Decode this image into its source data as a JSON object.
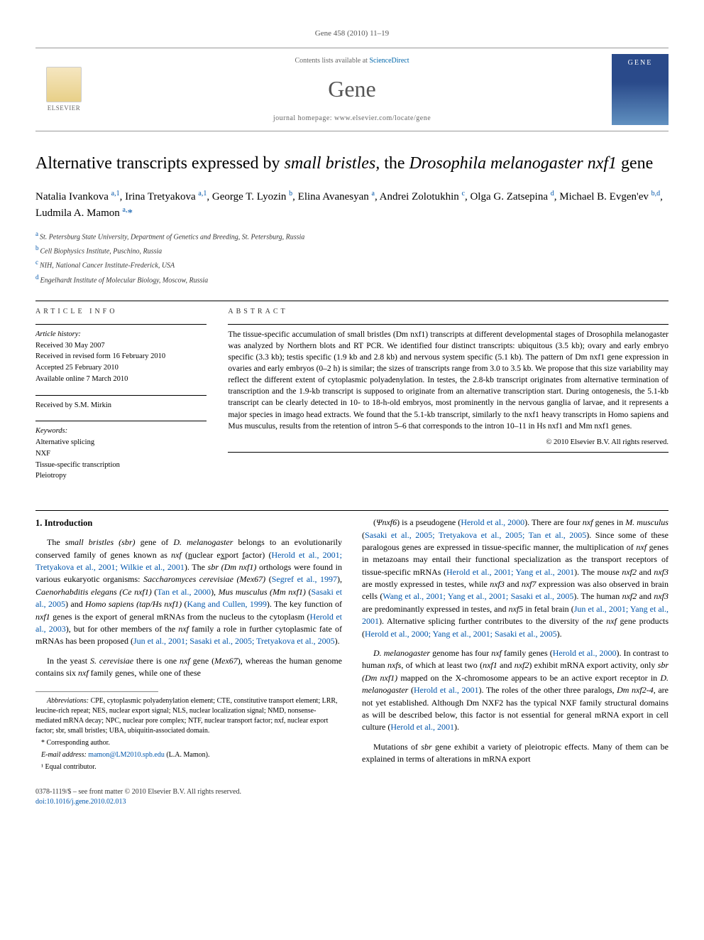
{
  "journal_ref": "Gene 458 (2010) 11–19",
  "masthead": {
    "contents_line_prefix": "Contents lists available at ",
    "contents_link": "ScienceDirect",
    "journal_name": "Gene",
    "homepage_line": "journal homepage: www.elsevier.com/locate/gene",
    "publisher_label": "ELSEVIER"
  },
  "title_parts": {
    "p1": "Alternative transcripts expressed by ",
    "p2": "small bristles,",
    "p3": " the ",
    "p4": "Drosophila melanogaster nxf1",
    "p5": " gene"
  },
  "authors": [
    {
      "name": "Natalia Ivankova",
      "sup": "a,1"
    },
    {
      "name": "Irina Tretyakova",
      "sup": "a,1"
    },
    {
      "name": "George T. Lyozin",
      "sup": "b"
    },
    {
      "name": "Elina Avanesyan",
      "sup": "a"
    },
    {
      "name": "Andrei Zolotukhin",
      "sup": "c"
    },
    {
      "name": "Olga G. Zatsepina",
      "sup": "d"
    },
    {
      "name": "Michael B. Evgen'ev",
      "sup": "b,d"
    },
    {
      "name": "Ludmila A. Mamon",
      "sup": "a,",
      "star": "*"
    }
  ],
  "affiliations": [
    {
      "label": "a",
      "text": "St. Petersburg State University, Department of Genetics and Breeding, St. Petersburg, Russia"
    },
    {
      "label": "b",
      "text": "Cell Biophysics Institute, Puschino, Russia"
    },
    {
      "label": "c",
      "text": "NIH, National Cancer Institute-Frederick, USA"
    },
    {
      "label": "d",
      "text": "Engelhardt Institute of Molecular Biology, Moscow, Russia"
    }
  ],
  "article_info": {
    "heading": "ARTICLE INFO",
    "history_label": "Article history:",
    "history": [
      "Received 30 May 2007",
      "Received in revised form 16 February 2010",
      "Accepted 25 February 2010",
      "Available online 7 March 2010"
    ],
    "received_by": "Received by S.M. Mirkin",
    "keywords_label": "Keywords:",
    "keywords": [
      "Alternative splicing",
      "NXF",
      "Tissue-specific transcription",
      "Pleiotropy"
    ]
  },
  "abstract": {
    "heading": "ABSTRACT",
    "text": "The tissue-specific accumulation of small bristles (Dm nxf1) transcripts at different developmental stages of Drosophila melanogaster was analyzed by Northern blots and RT PCR. We identified four distinct transcripts: ubiquitous (3.5 kb); ovary and early embryo specific (3.3 kb); testis specific (1.9 kb and 2.8 kb) and nervous system specific (5.1 kb). The pattern of Dm nxf1 gene expression in ovaries and early embryos (0–2 h) is similar; the sizes of transcripts range from 3.0 to 3.5 kb. We propose that this size variability may reflect the different extent of cytoplasmic polyadenylation. In testes, the 2.8-kb transcript originates from alternative termination of transcription and the 1.9-kb transcript is supposed to originate from an alternative transcription start. During ontogenesis, the 5.1-kb transcript can be clearly detected in 10- to 18-h-old embryos, most prominently in the nervous ganglia of larvae, and it represents a major species in imago head extracts. We found that the 5.1-kb transcript, similarly to the nxf1 heavy transcripts in Homo sapiens and Mus musculus, results from the retention of intron 5–6 that corresponds to the intron 10–11 in Hs nxf1 and Mm nxf1 genes.",
    "copyright": "© 2010 Elsevier B.V. All rights reserved."
  },
  "intro_heading": "1. Introduction",
  "col_left": {
    "para1_html": "The <i>small bristles (sbr)</i> gene of <i>D. melanogaster</i> belongs to an evolutionarily conserved family of genes known as <i>nxf</i> (<u>n</u>uclear e<u>x</u>port <u>f</u>actor) (<span class='cite'>Herold et al., 2001; Tretyakova et al., 2001; Wilkie et al., 2001</span>). The <i>sbr (Dm nxf1)</i> orthologs were found in various eukaryotic organisms: <i>Saccharomyces cerevisiae (Mex67)</i> (<span class='cite'>Segref et al., 1997</span>), <i>Caenorhabditis elegans (Ce nxf1)</i> (<span class='cite'>Tan et al., 2000</span>), <i>Mus musculus (Mm nxf1)</i> (<span class='cite'>Sasaki et al., 2005</span>) and <i>Homo sapiens (tap/Hs nxf1)</i> (<span class='cite'>Kang and Cullen, 1999</span>). The key function of <i>nxf1</i> genes is the export of general mRNAs from the nucleus to the cytoplasm (<span class='cite'>Herold et al., 2003</span>), but for other members of the <i>nxf</i> family a role in further cytoplasmic fate of mRNAs has been proposed (<span class='cite'>Jun et al., 2001; Sasaki et al., 2005; Tretyakova et al., 2005</span>).",
    "para2_html": "In the yeast <i>S. cerevisiae</i> there is one <i>nxf</i> gene (<i>Mex67</i>), whereas the human genome contains six <i>nxf</i> family genes, while one of these"
  },
  "col_right": {
    "para1_html": "(<i>Ψnxf6</i>) is a pseudogene (<span class='cite'>Herold et al., 2000</span>). There are four <i>nxf</i> genes in <i>M. musculus</i> (<span class='cite'>Sasaki et al., 2005; Tretyakova et al., 2005; Tan et al., 2005</span>). Since some of these paralogous genes are expressed in tissue-specific manner, the multiplication of <i>nxf</i> genes in metazoans may entail their functional specialization as the transport receptors of tissue-specific mRNAs (<span class='cite'>Herold et al., 2001; Yang et al., 2001</span>). The mouse <i>nxf2</i> and <i>nxf3</i> are mostly expressed in testes, while <i>nxf3</i> and <i>nxf7</i> expression was also observed in brain cells (<span class='cite'>Wang et al., 2001; Yang et al., 2001; Sasaki et al., 2005</span>). The human <i>nxf2</i> and <i>nxf3</i> are predominantly expressed in testes, and <i>nxf5</i> in fetal brain (<span class='cite'>Jun et al., 2001; Yang et al., 2001</span>). Alternative splicing further contributes to the diversity of the <i>nxf</i> gene products (<span class='cite'>Herold et al., 2000; Yang et al., 2001; Sasaki et al., 2005</span>).",
    "para2_html": "<i>D. melanogaster</i> genome has four <i>nxf</i> family genes (<span class='cite'>Herold et al., 2000</span>). In contrast to human <i>nxfs</i>, of which at least two (<i>nxf1</i> and <i>nxf2</i>) exhibit mRNA export activity, only <i>sbr (Dm nxf1)</i> mapped on the X-chromosome appears to be an active export receptor in <i>D. melanogaster</i> (<span class='cite'>Herold et al., 2001</span>). The roles of the other three paralogs, <i>Dm nxf2-4</i>, are not yet established. Although Dm NXF2 has the typical NXF family structural domains as will be described below, this factor is not essential for general mRNA export in cell culture (<span class='cite'>Herold et al., 2001</span>).",
    "para3_html": "Mutations of <i>sbr</i> gene exhibit a variety of pleiotropic effects. Many of them can be explained in terms of alterations in mRNA export"
  },
  "footnotes": {
    "abbrev_label": "Abbreviations:",
    "abbrev_text": " CPE, cytoplasmic polyadenylation element; CTE, constitutive transport element; LRR, leucine-rich repeat; NES, nuclear export signal; NLS, nuclear localization signal; NMD, nonsense-mediated mRNA decay; NPC, nuclear pore complex; NTF, nuclear transport factor; nxf, nuclear export factor; sbr, small bristles; UBA, ubiquitin-associated domain.",
    "corresponding": "* Corresponding author.",
    "email_label": "E-mail address: ",
    "email": "mamon@LM2010.spb.edu",
    "email_suffix": " (L.A. Mamon).",
    "equal": "¹ Equal contributor."
  },
  "footer": {
    "front_matter": "0378-1119/$ – see front matter © 2010 Elsevier B.V. All rights reserved.",
    "doi": "doi:10.1016/j.gene.2010.02.013"
  }
}
